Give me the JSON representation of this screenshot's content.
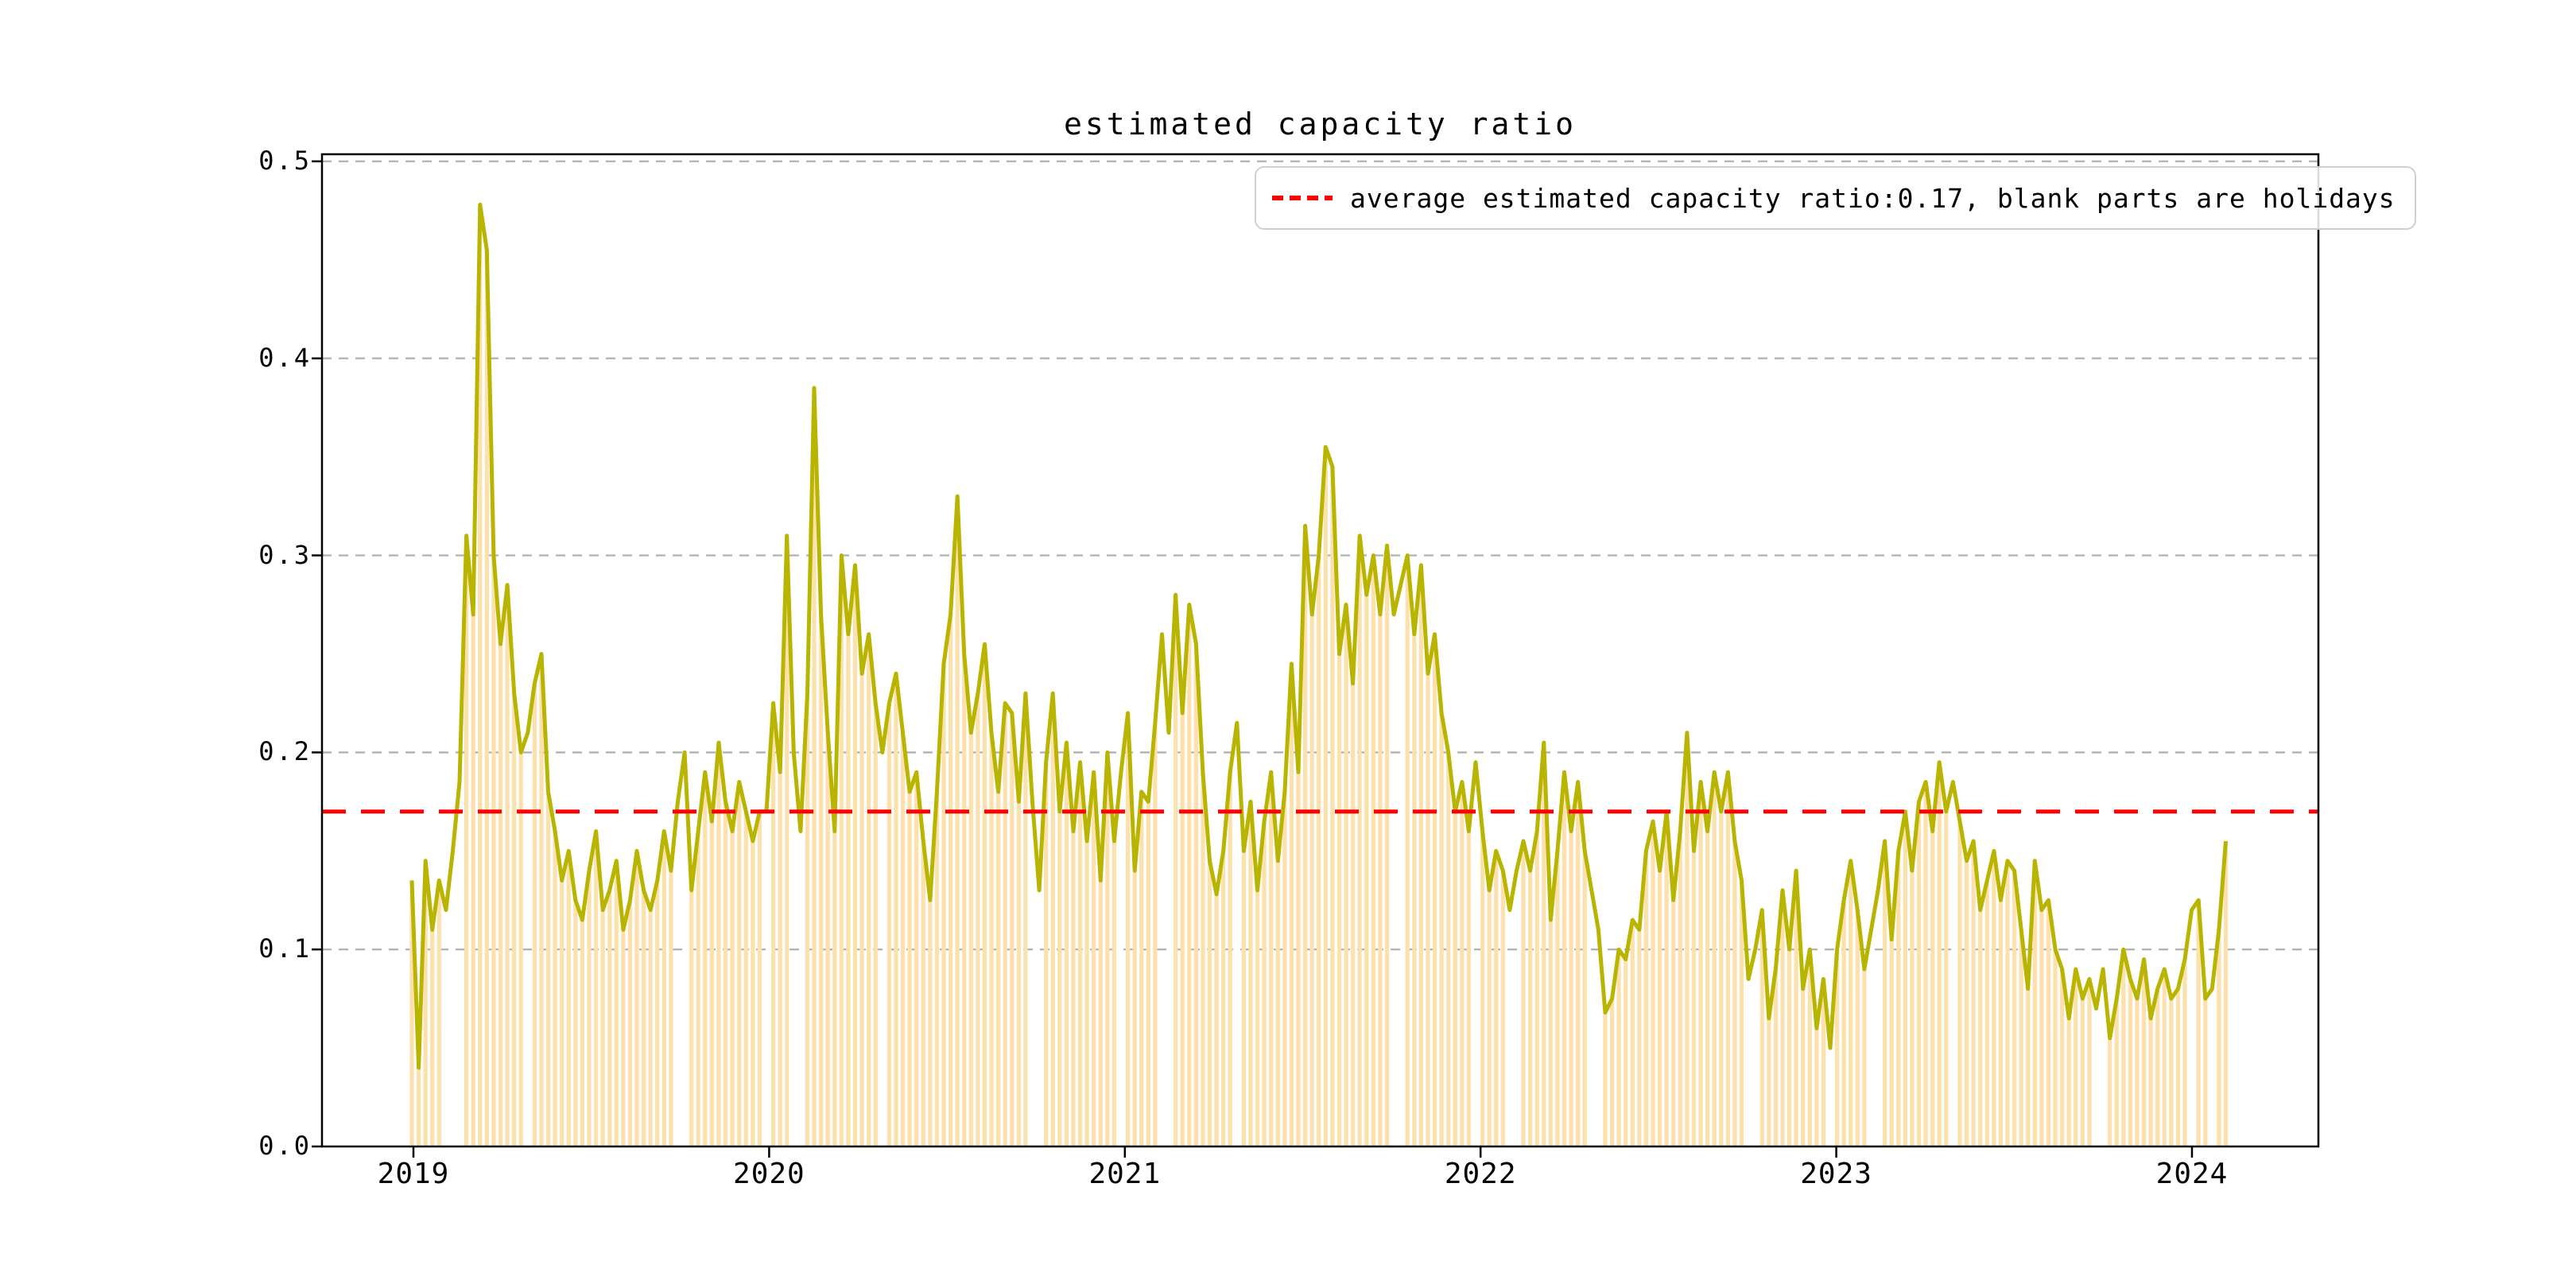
{
  "figure": {
    "background_color": "#ffffff"
  },
  "legend": {
    "label": "average estimated capacity ratio:0.17, blank parts are holidays",
    "line_color": "#ff0000",
    "line_style": "dashed",
    "position": "upper right"
  },
  "chart_data": {
    "type": "line",
    "title": "estimated capacity ratio",
    "xlabel": "",
    "ylabel": "",
    "x_tick_labels": [
      "2019",
      "2020",
      "2021",
      "2022",
      "2023",
      "2024"
    ],
    "y_tick_labels": [
      "0.0",
      "0.1",
      "0.2",
      "0.3",
      "0.4",
      "0.5"
    ],
    "y_ticks": [
      0.0,
      0.1,
      0.2,
      0.3,
      0.4,
      0.5
    ],
    "ylim": [
      0,
      0.5036
    ],
    "grid": true,
    "average_line_value": 0.17,
    "average_line_color": "#ff0000",
    "line_color": "#b8b400",
    "bar_color": "#fce1ac",
    "grid_color": "#b4b4b4",
    "interval": "weekly",
    "start_year": 2019,
    "end_label": "2024 (early Feb)",
    "values": [
      0.135,
      0.04,
      0.145,
      0.11,
      0.135,
      0.12,
      0.15,
      0.185,
      0.31,
      0.27,
      0.478,
      0.455,
      0.3,
      0.255,
      0.285,
      0.23,
      0.2,
      0.21,
      0.235,
      0.25,
      0.18,
      0.16,
      0.135,
      0.15,
      0.125,
      0.115,
      0.14,
      0.16,
      0.12,
      0.13,
      0.145,
      0.11,
      0.125,
      0.15,
      0.13,
      0.12,
      0.135,
      0.16,
      0.14,
      0.175,
      0.2,
      0.13,
      0.16,
      0.19,
      0.165,
      0.205,
      0.175,
      0.16,
      0.185,
      0.17,
      0.155,
      0.17,
      0.17,
      0.225,
      0.19,
      0.31,
      0.2,
      0.16,
      0.23,
      0.385,
      0.27,
      0.21,
      0.16,
      0.3,
      0.26,
      0.295,
      0.24,
      0.26,
      0.225,
      0.2,
      0.225,
      0.24,
      0.21,
      0.18,
      0.19,
      0.155,
      0.125,
      0.18,
      0.245,
      0.27,
      0.33,
      0.25,
      0.21,
      0.23,
      0.255,
      0.21,
      0.18,
      0.225,
      0.22,
      0.175,
      0.23,
      0.175,
      0.13,
      0.195,
      0.23,
      0.17,
      0.205,
      0.16,
      0.195,
      0.155,
      0.19,
      0.135,
      0.2,
      0.155,
      0.19,
      0.22,
      0.14,
      0.18,
      0.175,
      0.215,
      0.26,
      0.21,
      0.28,
      0.22,
      0.275,
      0.255,
      0.19,
      0.145,
      0.128,
      0.15,
      0.19,
      0.215,
      0.15,
      0.175,
      0.13,
      0.165,
      0.19,
      0.145,
      0.18,
      0.245,
      0.19,
      0.315,
      0.27,
      0.3,
      0.355,
      0.345,
      0.25,
      0.275,
      0.235,
      0.31,
      0.28,
      0.3,
      0.27,
      0.305,
      0.27,
      0.285,
      0.3,
      0.26,
      0.295,
      0.24,
      0.26,
      0.22,
      0.2,
      0.17,
      0.185,
      0.16,
      0.195,
      0.16,
      0.13,
      0.15,
      0.14,
      0.12,
      0.14,
      0.155,
      0.14,
      0.16,
      0.205,
      0.115,
      0.15,
      0.19,
      0.16,
      0.185,
      0.15,
      0.13,
      0.11,
      0.068,
      0.075,
      0.1,
      0.095,
      0.115,
      0.11,
      0.15,
      0.165,
      0.14,
      0.17,
      0.125,
      0.16,
      0.21,
      0.15,
      0.185,
      0.16,
      0.19,
      0.17,
      0.19,
      0.155,
      0.135,
      0.085,
      0.1,
      0.12,
      0.065,
      0.09,
      0.13,
      0.1,
      0.14,
      0.08,
      0.1,
      0.06,
      0.085,
      0.05,
      0.1,
      0.125,
      0.145,
      0.12,
      0.09,
      0.11,
      0.13,
      0.155,
      0.105,
      0.15,
      0.17,
      0.14,
      0.175,
      0.185,
      0.16,
      0.195,
      0.17,
      0.185,
      0.165,
      0.145,
      0.155,
      0.12,
      0.135,
      0.15,
      0.125,
      0.145,
      0.14,
      0.11,
      0.08,
      0.145,
      0.12,
      0.125,
      0.1,
      0.09,
      0.065,
      0.09,
      0.075,
      0.085,
      0.07,
      0.09,
      0.055,
      0.075,
      0.1,
      0.085,
      0.075,
      0.095,
      0.065,
      0.08,
      0.09,
      0.075,
      0.08,
      0.095,
      0.12,
      0.125,
      0.075,
      0.08,
      0.11,
      0.155
    ],
    "holiday_weeks_no_bar": [
      5,
      6,
      7,
      17,
      39,
      40,
      52,
      56,
      57,
      69,
      91,
      92,
      104,
      110,
      111,
      121,
      144,
      145,
      156,
      161,
      162,
      173,
      174,
      196,
      197,
      208,
      214,
      215,
      226,
      247,
      248,
      261,
      264
    ]
  }
}
